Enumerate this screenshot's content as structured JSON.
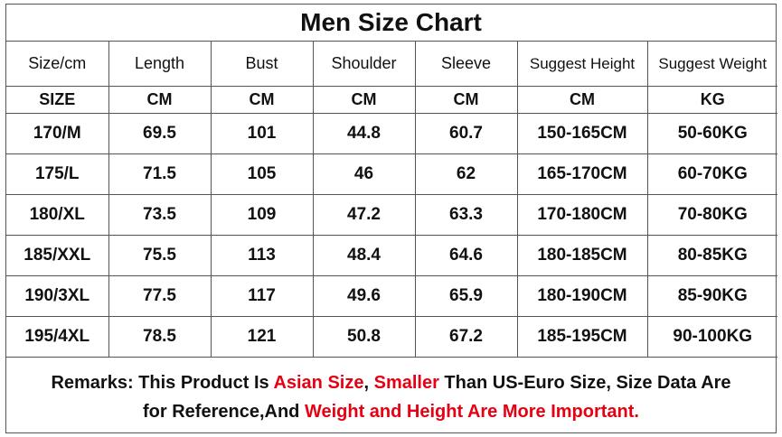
{
  "title": "Men Size Chart",
  "headers": [
    "Size/cm",
    "Length",
    "Bust",
    "Shoulder",
    "Sleeve",
    "Suggest Height",
    "Suggest Weight"
  ],
  "units": [
    "SIZE",
    "CM",
    "CM",
    "CM",
    "CM",
    "CM",
    "KG"
  ],
  "rows": [
    [
      "170/M",
      "69.5",
      "101",
      "44.8",
      "60.7",
      "150-165CM",
      "50-60KG"
    ],
    [
      "175/L",
      "71.5",
      "105",
      "46",
      "62",
      "165-170CM",
      "60-70KG"
    ],
    [
      "180/XL",
      "73.5",
      "109",
      "47.2",
      "63.3",
      "170-180CM",
      "70-80KG"
    ],
    [
      "185/XXL",
      "75.5",
      "113",
      "48.4",
      "64.6",
      "180-185CM",
      "80-85KG"
    ],
    [
      "190/3XL",
      "77.5",
      "117",
      "49.6",
      "65.9",
      "180-190CM",
      "85-90KG"
    ],
    [
      "195/4XL",
      "78.5",
      "121",
      "50.8",
      "67.2",
      "185-195CM",
      "90-100KG"
    ]
  ],
  "remarks": {
    "line1": [
      {
        "text": "Remarks: This Product Is ",
        "color": "#111111"
      },
      {
        "text": "Asian Size",
        "color": "#e60012"
      },
      {
        "text": ", ",
        "color": "#111111"
      },
      {
        "text": "Smaller",
        "color": "#e60012"
      },
      {
        "text": " Than US-Euro Size, Size Data Are",
        "color": "#111111"
      }
    ],
    "line2": [
      {
        "text": "for Reference,And ",
        "color": "#111111"
      },
      {
        "text": "Weight and Height Are More Important.",
        "color": "#e60012"
      }
    ]
  }
}
